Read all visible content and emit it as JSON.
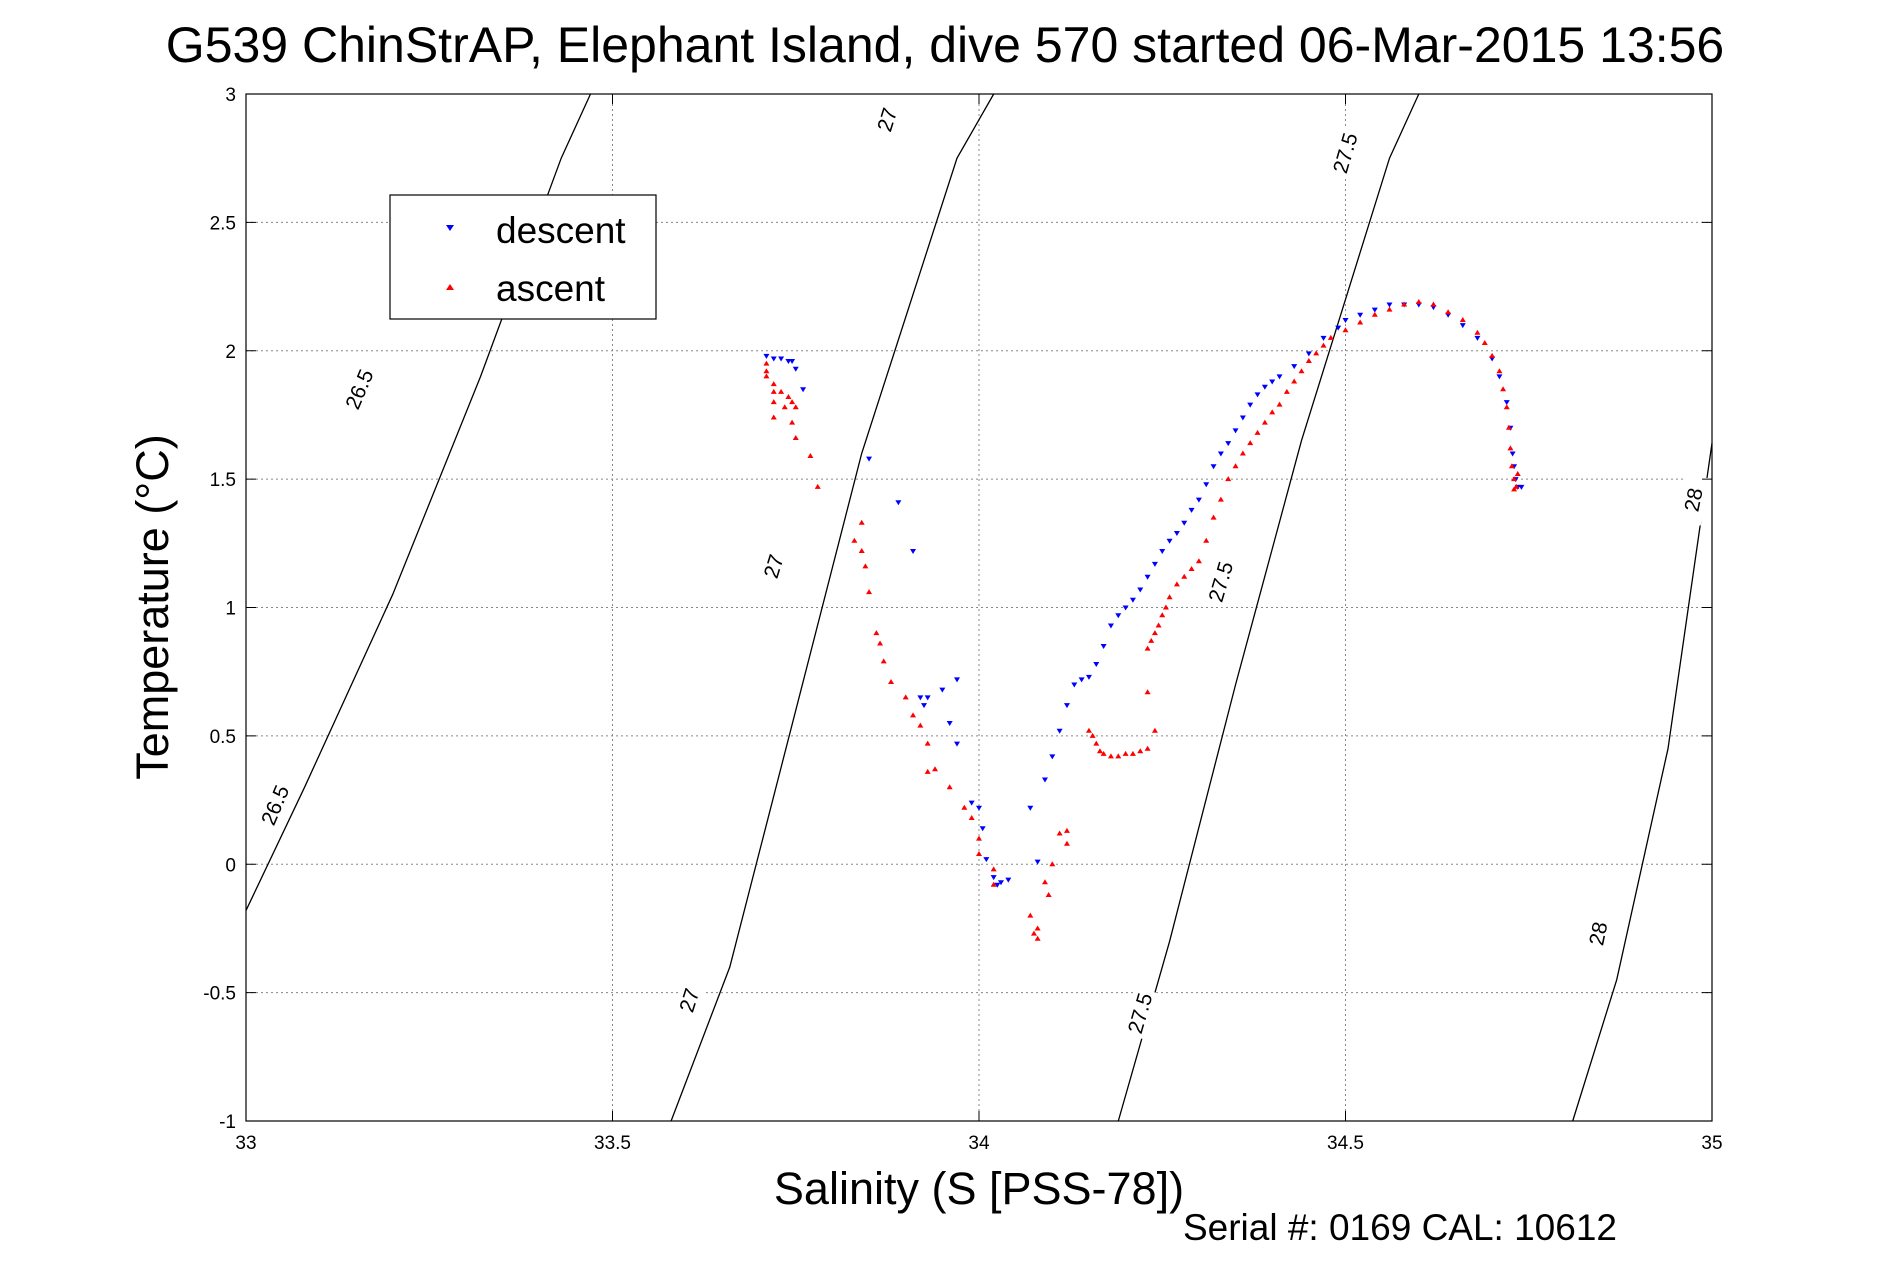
{
  "chart_data": {
    "type": "scatter",
    "title": "G539 ChinStrAP, Elephant Island, dive 570 started 06-Mar-2015 13:56",
    "xlabel": "Salinity (S [PSS-78])",
    "ylabel": "Temperature (°C)",
    "footer": "Serial #: 0169 CAL: 10612",
    "xlim": [
      33,
      35
    ],
    "ylim": [
      -1,
      3
    ],
    "xticks": [
      33,
      33.5,
      34,
      34.5,
      35
    ],
    "xtick_labels": [
      "33",
      "33.5",
      "34",
      "34.5",
      "35"
    ],
    "yticks": [
      -1,
      -0.5,
      0,
      0.5,
      1,
      1.5,
      2,
      2.5,
      3
    ],
    "ytick_labels": [
      "-1",
      "-0.5",
      "0",
      "0.5",
      "1",
      "1.5",
      "2",
      "2.5",
      "3"
    ],
    "grid": true,
    "legend_position": "top-left",
    "contours": [
      {
        "level": "26.5",
        "points": [
          [
            32.995,
            -0.18
          ],
          [
            33.08,
            0.3
          ],
          [
            33.2,
            1.05
          ],
          [
            33.32,
            1.9
          ],
          [
            33.43,
            2.75
          ],
          [
            33.47,
            3.0
          ]
        ],
        "labels": [
          {
            "text": "26.5",
            "x": 33.04,
            "y": 0.23
          },
          {
            "text": "26.5",
            "x": 33.155,
            "y": 1.85
          }
        ]
      },
      {
        "level": "27",
        "points": [
          [
            33.58,
            -1.0
          ],
          [
            33.66,
            -0.4
          ],
          [
            33.75,
            0.6
          ],
          [
            33.84,
            1.6
          ],
          [
            33.97,
            2.75
          ],
          [
            34.02,
            3.0
          ]
        ],
        "labels": [
          {
            "text": "27",
            "x": 33.605,
            "y": -0.53
          },
          {
            "text": "27",
            "x": 33.72,
            "y": 1.16
          },
          {
            "text": "27",
            "x": 33.875,
            "y": 2.9
          }
        ]
      },
      {
        "level": "27.5",
        "points": [
          [
            34.19,
            -1.0
          ],
          [
            34.26,
            -0.3
          ],
          [
            34.35,
            0.7
          ],
          [
            34.44,
            1.65
          ],
          [
            34.56,
            2.75
          ],
          [
            34.6,
            3.0
          ]
        ],
        "labels": [
          {
            "text": "27.5",
            "x": 34.22,
            "y": -0.58
          },
          {
            "text": "27.5",
            "x": 34.33,
            "y": 1.1
          },
          {
            "text": "27.5",
            "x": 34.5,
            "y": 2.77
          }
        ]
      },
      {
        "level": "28",
        "points": [
          [
            34.81,
            -1.0
          ],
          [
            34.87,
            -0.45
          ],
          [
            34.94,
            0.45
          ],
          [
            35.0,
            1.64
          ]
        ],
        "labels": [
          {
            "text": "28",
            "x": 34.845,
            "y": -0.27
          },
          {
            "text": "28",
            "x": 34.975,
            "y": 1.42
          }
        ]
      }
    ],
    "series": [
      {
        "name": "descent",
        "color": "#0000ff",
        "marker": "triangle-down",
        "points": [
          [
            33.71,
            1.98
          ],
          [
            33.72,
            1.97
          ],
          [
            33.73,
            1.97
          ],
          [
            33.74,
            1.96
          ],
          [
            33.745,
            1.96
          ],
          [
            33.75,
            1.93
          ],
          [
            33.76,
            1.85
          ],
          [
            33.85,
            1.58
          ],
          [
            33.89,
            1.41
          ],
          [
            33.91,
            1.22
          ],
          [
            33.92,
            0.65
          ],
          [
            33.925,
            0.62
          ],
          [
            33.93,
            0.65
          ],
          [
            33.95,
            0.68
          ],
          [
            33.97,
            0.72
          ],
          [
            33.96,
            0.55
          ],
          [
            33.97,
            0.47
          ],
          [
            33.99,
            0.24
          ],
          [
            34.0,
            0.22
          ],
          [
            34.005,
            0.14
          ],
          [
            34.01,
            0.02
          ],
          [
            34.02,
            -0.05
          ],
          [
            34.025,
            -0.08
          ],
          [
            34.03,
            -0.07
          ],
          [
            34.04,
            -0.06
          ],
          [
            34.08,
            0.01
          ],
          [
            34.07,
            0.22
          ],
          [
            34.09,
            0.33
          ],
          [
            34.1,
            0.42
          ],
          [
            34.11,
            0.52
          ],
          [
            34.12,
            0.62
          ],
          [
            34.13,
            0.7
          ],
          [
            34.14,
            0.72
          ],
          [
            34.15,
            0.73
          ],
          [
            34.16,
            0.78
          ],
          [
            34.17,
            0.85
          ],
          [
            34.18,
            0.93
          ],
          [
            34.19,
            0.97
          ],
          [
            34.2,
            1.0
          ],
          [
            34.21,
            1.03
          ],
          [
            34.22,
            1.07
          ],
          [
            34.23,
            1.12
          ],
          [
            34.24,
            1.17
          ],
          [
            34.25,
            1.22
          ],
          [
            34.26,
            1.26
          ],
          [
            34.27,
            1.29
          ],
          [
            34.28,
            1.33
          ],
          [
            34.29,
            1.38
          ],
          [
            34.3,
            1.42
          ],
          [
            34.31,
            1.48
          ],
          [
            34.32,
            1.55
          ],
          [
            34.33,
            1.6
          ],
          [
            34.34,
            1.64
          ],
          [
            34.35,
            1.69
          ],
          [
            34.36,
            1.74
          ],
          [
            34.37,
            1.79
          ],
          [
            34.38,
            1.83
          ],
          [
            34.39,
            1.86
          ],
          [
            34.4,
            1.88
          ],
          [
            34.41,
            1.9
          ],
          [
            34.43,
            1.94
          ],
          [
            34.45,
            1.99
          ],
          [
            34.47,
            2.05
          ],
          [
            34.49,
            2.09
          ],
          [
            34.5,
            2.12
          ],
          [
            34.52,
            2.14
          ],
          [
            34.54,
            2.16
          ],
          [
            34.56,
            2.18
          ],
          [
            34.58,
            2.18
          ],
          [
            34.6,
            2.18
          ],
          [
            34.62,
            2.17
          ],
          [
            34.64,
            2.14
          ],
          [
            34.66,
            2.1
          ],
          [
            34.68,
            2.05
          ],
          [
            34.7,
            1.97
          ],
          [
            34.71,
            1.9
          ],
          [
            34.72,
            1.8
          ],
          [
            34.725,
            1.7
          ],
          [
            34.728,
            1.6
          ],
          [
            34.73,
            1.55
          ],
          [
            34.732,
            1.5
          ],
          [
            34.735,
            1.47
          ],
          [
            34.74,
            1.47
          ]
        ]
      },
      {
        "name": "ascent",
        "color": "#ff0000",
        "marker": "triangle-up",
        "points": [
          [
            33.71,
            1.95
          ],
          [
            33.71,
            1.92
          ],
          [
            33.71,
            1.9
          ],
          [
            33.72,
            1.87
          ],
          [
            33.72,
            1.84
          ],
          [
            33.72,
            1.8
          ],
          [
            33.73,
            1.84
          ],
          [
            33.735,
            1.78
          ],
          [
            33.74,
            1.82
          ],
          [
            33.745,
            1.8
          ],
          [
            33.75,
            1.78
          ],
          [
            33.72,
            1.74
          ],
          [
            33.745,
            1.72
          ],
          [
            33.75,
            1.66
          ],
          [
            33.77,
            1.59
          ],
          [
            33.78,
            1.47
          ],
          [
            33.83,
            1.26
          ],
          [
            33.84,
            1.33
          ],
          [
            33.84,
            1.22
          ],
          [
            33.845,
            1.16
          ],
          [
            33.85,
            1.06
          ],
          [
            33.86,
            0.9
          ],
          [
            33.865,
            0.86
          ],
          [
            33.87,
            0.79
          ],
          [
            33.88,
            0.71
          ],
          [
            33.9,
            0.65
          ],
          [
            33.91,
            0.58
          ],
          [
            33.92,
            0.54
          ],
          [
            33.93,
            0.47
          ],
          [
            33.93,
            0.36
          ],
          [
            33.94,
            0.37
          ],
          [
            33.96,
            0.3
          ],
          [
            33.98,
            0.22
          ],
          [
            33.99,
            0.18
          ],
          [
            34.0,
            0.1
          ],
          [
            34.0,
            0.04
          ],
          [
            34.02,
            -0.02
          ],
          [
            34.02,
            -0.08
          ],
          [
            34.07,
            -0.2
          ],
          [
            34.075,
            -0.27
          ],
          [
            34.08,
            -0.29
          ],
          [
            34.08,
            -0.25
          ],
          [
            34.09,
            -0.07
          ],
          [
            34.095,
            -0.12
          ],
          [
            34.1,
            0.0
          ],
          [
            34.11,
            0.12
          ],
          [
            34.12,
            0.13
          ],
          [
            34.12,
            0.08
          ],
          [
            34.15,
            0.52
          ],
          [
            34.155,
            0.5
          ],
          [
            34.16,
            0.47
          ],
          [
            34.165,
            0.44
          ],
          [
            34.17,
            0.43
          ],
          [
            34.18,
            0.42
          ],
          [
            34.19,
            0.42
          ],
          [
            34.2,
            0.43
          ],
          [
            34.21,
            0.43
          ],
          [
            34.22,
            0.44
          ],
          [
            34.23,
            0.45
          ],
          [
            34.24,
            0.52
          ],
          [
            34.23,
            0.67
          ],
          [
            34.23,
            0.84
          ],
          [
            34.235,
            0.87
          ],
          [
            34.24,
            0.9
          ],
          [
            34.245,
            0.93
          ],
          [
            34.25,
            0.97
          ],
          [
            34.255,
            1.0
          ],
          [
            34.26,
            1.04
          ],
          [
            34.27,
            1.09
          ],
          [
            34.28,
            1.12
          ],
          [
            34.29,
            1.15
          ],
          [
            34.3,
            1.18
          ],
          [
            34.31,
            1.26
          ],
          [
            34.32,
            1.35
          ],
          [
            34.33,
            1.42
          ],
          [
            34.34,
            1.5
          ],
          [
            34.35,
            1.55
          ],
          [
            34.36,
            1.6
          ],
          [
            34.37,
            1.64
          ],
          [
            34.38,
            1.68
          ],
          [
            34.39,
            1.72
          ],
          [
            34.4,
            1.76
          ],
          [
            34.41,
            1.79
          ],
          [
            34.42,
            1.84
          ],
          [
            34.43,
            1.88
          ],
          [
            34.44,
            1.92
          ],
          [
            34.45,
            1.96
          ],
          [
            34.46,
            1.99
          ],
          [
            34.47,
            2.02
          ],
          [
            34.48,
            2.05
          ],
          [
            34.5,
            2.08
          ],
          [
            34.52,
            2.11
          ],
          [
            34.54,
            2.14
          ],
          [
            34.56,
            2.16
          ],
          [
            34.58,
            2.18
          ],
          [
            34.6,
            2.19
          ],
          [
            34.62,
            2.18
          ],
          [
            34.64,
            2.15
          ],
          [
            34.66,
            2.12
          ],
          [
            34.68,
            2.07
          ],
          [
            34.69,
            2.03
          ],
          [
            34.7,
            1.98
          ],
          [
            34.71,
            1.92
          ],
          [
            34.715,
            1.85
          ],
          [
            34.72,
            1.78
          ],
          [
            34.723,
            1.7
          ],
          [
            34.725,
            1.62
          ],
          [
            34.727,
            1.55
          ],
          [
            34.73,
            1.5
          ],
          [
            34.733,
            1.47
          ],
          [
            34.735,
            1.52
          ],
          [
            34.73,
            1.46
          ]
        ]
      }
    ]
  }
}
